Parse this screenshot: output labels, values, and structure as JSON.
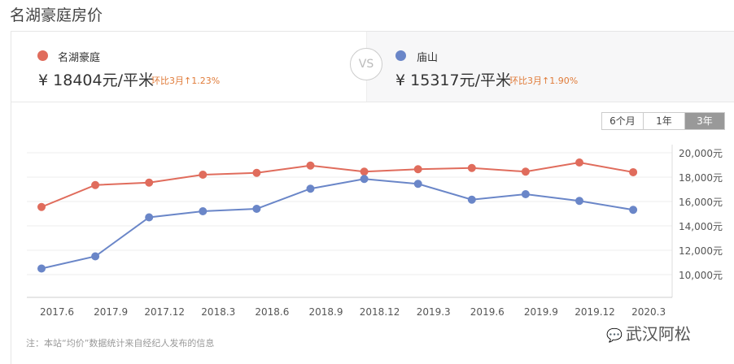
{
  "page": {
    "title": "名湖豪庭房价"
  },
  "compare": {
    "left": {
      "name": "名湖豪庭",
      "currency": "¥",
      "price": "18404元/平米",
      "change": "环比3月↑1.23%",
      "color": "#e06c5c"
    },
    "vs_label": "VS",
    "right": {
      "name": "庙山",
      "currency": "¥",
      "price": "15317元/平米",
      "change": "环比3月↑1.90%",
      "color": "#6a86c8"
    }
  },
  "periods": [
    {
      "label": "6个月",
      "active": false
    },
    {
      "label": "1年",
      "active": false
    },
    {
      "label": "3年",
      "active": true
    }
  ],
  "note": "注：本站“均价”数据统计来自经纪人发布的信息",
  "watermark": {
    "icon": "wechat-icon",
    "text": "武汉阿松"
  },
  "chart_data": {
    "type": "line",
    "title": "",
    "xlabel": "",
    "ylabel": "",
    "x": [
      "2017.6",
      "2017.9",
      "2017.12",
      "2018.3",
      "2018.6",
      "2018.9",
      "2018.12",
      "2019.3",
      "2019.6",
      "2019.9",
      "2019.12",
      "2020.3"
    ],
    "series": [
      {
        "name": "名湖豪庭",
        "color": "#e06c5c",
        "values": [
          15550,
          17350,
          17550,
          18200,
          18350,
          18950,
          18450,
          18650,
          18750,
          18450,
          19200,
          18404
        ]
      },
      {
        "name": "庙山",
        "color": "#6a86c8",
        "values": [
          10500,
          11500,
          14700,
          15200,
          15400,
          17050,
          17850,
          17450,
          16150,
          16600,
          16050,
          15317
        ]
      }
    ],
    "yticks": [
      "20,000元",
      "18,000元",
      "16,000元",
      "14,000元",
      "12,000元",
      "10,000元"
    ],
    "ytick_values": [
      20000,
      18000,
      16000,
      14000,
      12000,
      10000
    ],
    "ylim": [
      8000,
      20000
    ],
    "grid": true,
    "legend": "top (comparison header)",
    "y_axis_position": "right"
  }
}
